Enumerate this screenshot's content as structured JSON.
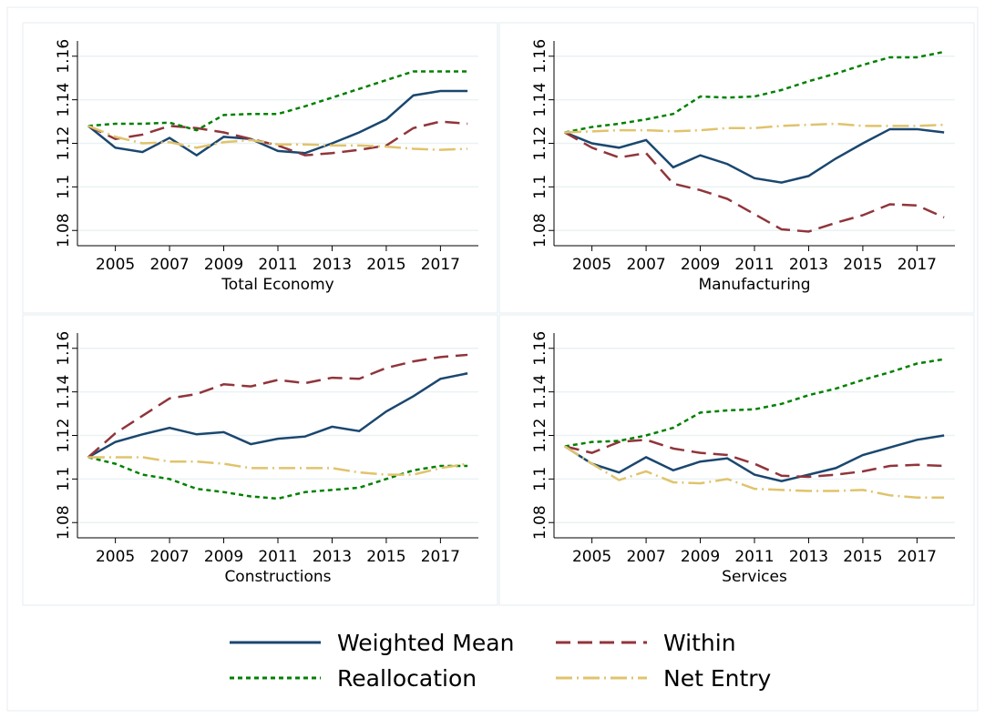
{
  "chart_data": [
    {
      "type": "line",
      "title": "Total Economy",
      "x": [
        2004,
        2005,
        2006,
        2007,
        2008,
        2009,
        2010,
        2011,
        2012,
        2013,
        2014,
        2015,
        2016,
        2017,
        2018
      ],
      "xlim": [
        2003.6,
        2018.4
      ],
      "xticks": [
        2005,
        2007,
        2009,
        2011,
        2013,
        2015,
        2017
      ],
      "ylim": [
        1.073,
        1.167
      ],
      "yticks": [
        1.08,
        1.1,
        1.12,
        1.14,
        1.16
      ],
      "grid": true,
      "series": [
        {
          "name": "Weighted Mean",
          "color": "#1a476f",
          "style": "solid",
          "values": [
            1.128,
            1.118,
            1.116,
            1.1225,
            1.1145,
            1.123,
            1.122,
            1.1165,
            1.1155,
            1.12,
            1.125,
            1.131,
            1.142,
            1.144,
            1.144
          ]
        },
        {
          "name": "Within",
          "color": "#90353b",
          "style": "dash",
          "values": [
            1.128,
            1.122,
            1.124,
            1.128,
            1.127,
            1.125,
            1.122,
            1.119,
            1.1145,
            1.1155,
            1.117,
            1.119,
            1.127,
            1.13,
            1.129
          ]
        },
        {
          "name": "Reallocation",
          "color": "#008000",
          "style": "shortdash",
          "values": [
            1.128,
            1.129,
            1.129,
            1.1295,
            1.126,
            1.133,
            1.1335,
            1.1335,
            1.137,
            1.141,
            1.145,
            1.149,
            1.153,
            1.153,
            1.153
          ]
        },
        {
          "name": "Net Entry",
          "color": "#e0c36c",
          "style": "longdashdot",
          "values": [
            1.128,
            1.123,
            1.12,
            1.1205,
            1.118,
            1.1205,
            1.1215,
            1.1195,
            1.1195,
            1.119,
            1.119,
            1.1185,
            1.1175,
            1.117,
            1.1175
          ]
        }
      ]
    },
    {
      "type": "line",
      "title": "Manufacturing",
      "x": [
        2004,
        2005,
        2006,
        2007,
        2008,
        2009,
        2010,
        2011,
        2012,
        2013,
        2014,
        2015,
        2016,
        2017,
        2018
      ],
      "xlim": [
        2003.6,
        2018.4
      ],
      "xticks": [
        2005,
        2007,
        2009,
        2011,
        2013,
        2015,
        2017
      ],
      "ylim": [
        1.073,
        1.167
      ],
      "yticks": [
        1.08,
        1.1,
        1.12,
        1.14,
        1.16
      ],
      "grid": true,
      "series": [
        {
          "name": "Weighted Mean",
          "color": "#1a476f",
          "style": "solid",
          "values": [
            1.125,
            1.12,
            1.118,
            1.1215,
            1.109,
            1.1145,
            1.1105,
            1.104,
            1.102,
            1.105,
            1.113,
            1.12,
            1.1265,
            1.1265,
            1.125
          ]
        },
        {
          "name": "Within",
          "color": "#90353b",
          "style": "dash",
          "values": [
            1.125,
            1.118,
            1.1135,
            1.1155,
            1.1015,
            1.0985,
            1.0945,
            1.0875,
            1.0805,
            1.0795,
            1.0835,
            1.087,
            1.092,
            1.0915,
            1.086
          ]
        },
        {
          "name": "Reallocation",
          "color": "#008000",
          "style": "shortdash",
          "values": [
            1.125,
            1.1275,
            1.129,
            1.131,
            1.1335,
            1.1415,
            1.141,
            1.1415,
            1.1445,
            1.1485,
            1.152,
            1.156,
            1.1595,
            1.1595,
            1.162
          ]
        },
        {
          "name": "Net Entry",
          "color": "#e0c36c",
          "style": "longdashdot",
          "values": [
            1.125,
            1.1255,
            1.126,
            1.126,
            1.1255,
            1.126,
            1.127,
            1.127,
            1.128,
            1.1285,
            1.129,
            1.128,
            1.128,
            1.128,
            1.1285
          ]
        }
      ]
    },
    {
      "type": "line",
      "title": "Constructions",
      "x": [
        2004,
        2005,
        2006,
        2007,
        2008,
        2009,
        2010,
        2011,
        2012,
        2013,
        2014,
        2015,
        2016,
        2017,
        2018
      ],
      "xlim": [
        2003.6,
        2018.4
      ],
      "xticks": [
        2005,
        2007,
        2009,
        2011,
        2013,
        2015,
        2017
      ],
      "ylim": [
        1.073,
        1.167
      ],
      "yticks": [
        1.08,
        1.1,
        1.12,
        1.14,
        1.16
      ],
      "grid": true,
      "series": [
        {
          "name": "Weighted Mean",
          "color": "#1a476f",
          "style": "solid",
          "values": [
            1.11,
            1.117,
            1.1205,
            1.1235,
            1.1205,
            1.1215,
            1.116,
            1.1185,
            1.1195,
            1.124,
            1.122,
            1.131,
            1.138,
            1.146,
            1.1485
          ]
        },
        {
          "name": "Within",
          "color": "#90353b",
          "style": "dash",
          "values": [
            1.11,
            1.121,
            1.129,
            1.137,
            1.139,
            1.1435,
            1.1425,
            1.1455,
            1.144,
            1.1465,
            1.146,
            1.151,
            1.154,
            1.156,
            1.157
          ]
        },
        {
          "name": "Reallocation",
          "color": "#008000",
          "style": "shortdash",
          "values": [
            1.11,
            1.107,
            1.102,
            1.1,
            1.0955,
            1.094,
            1.092,
            1.091,
            1.094,
            1.095,
            1.096,
            1.1,
            1.104,
            1.106,
            1.106
          ]
        },
        {
          "name": "Net Entry",
          "color": "#e0c36c",
          "style": "longdashdot",
          "values": [
            1.11,
            1.11,
            1.11,
            1.108,
            1.108,
            1.107,
            1.105,
            1.105,
            1.105,
            1.105,
            1.103,
            1.102,
            1.102,
            1.105,
            1.107
          ]
        }
      ]
    },
    {
      "type": "line",
      "title": "Services",
      "x": [
        2004,
        2005,
        2006,
        2007,
        2008,
        2009,
        2010,
        2011,
        2012,
        2013,
        2014,
        2015,
        2016,
        2017,
        2018
      ],
      "xlim": [
        2003.6,
        2018.4
      ],
      "xticks": [
        2005,
        2007,
        2009,
        2011,
        2013,
        2015,
        2017
      ],
      "ylim": [
        1.073,
        1.167
      ],
      "yticks": [
        1.08,
        1.1,
        1.12,
        1.14,
        1.16
      ],
      "grid": true,
      "series": [
        {
          "name": "Weighted Mean",
          "color": "#1a476f",
          "style": "solid",
          "values": [
            1.115,
            1.107,
            1.103,
            1.11,
            1.104,
            1.108,
            1.1095,
            1.102,
            1.099,
            1.102,
            1.105,
            1.111,
            1.1145,
            1.118,
            1.12
          ]
        },
        {
          "name": "Within",
          "color": "#90353b",
          "style": "dash",
          "values": [
            1.115,
            1.112,
            1.117,
            1.118,
            1.114,
            1.112,
            1.111,
            1.107,
            1.1015,
            1.101,
            1.102,
            1.1035,
            1.106,
            1.1065,
            1.106
          ]
        },
        {
          "name": "Reallocation",
          "color": "#008000",
          "style": "shortdash",
          "values": [
            1.115,
            1.117,
            1.1175,
            1.12,
            1.1235,
            1.1305,
            1.1315,
            1.132,
            1.1345,
            1.1385,
            1.1415,
            1.1455,
            1.149,
            1.153,
            1.155
          ]
        },
        {
          "name": "Net Entry",
          "color": "#e0c36c",
          "style": "longdashdot",
          "values": [
            1.115,
            1.107,
            1.0995,
            1.1035,
            1.0985,
            1.098,
            1.1,
            1.0955,
            1.095,
            1.0945,
            1.0945,
            1.095,
            1.0925,
            1.0915,
            1.0915
          ]
        }
      ]
    }
  ]
}
